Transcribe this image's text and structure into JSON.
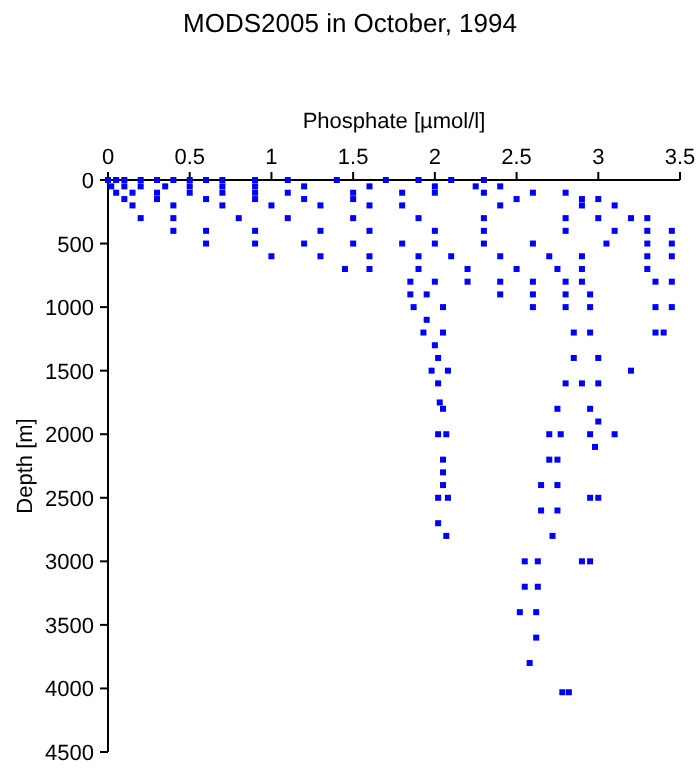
{
  "chart_data": {
    "type": "scatter",
    "title": "MODS2005 in October, 1994",
    "xlabel": "Phosphate [µmol/l]",
    "ylabel": "Depth [m]",
    "xlim": [
      0,
      3.5
    ],
    "xticks": [
      0,
      0.5,
      1,
      1.5,
      2,
      2.5,
      3,
      3.5
    ],
    "ylim": [
      4500,
      0
    ],
    "yticks": [
      0,
      500,
      1000,
      1500,
      2000,
      2500,
      3000,
      3500,
      4000,
      4500
    ],
    "marker": "square",
    "grid": false,
    "series": [
      {
        "color": "#0000ff",
        "x": [
          0,
          0.05,
          0.1,
          0.2,
          0.3,
          0.4,
          0.5,
          0.6,
          0.7,
          0.9,
          1.1,
          1.4,
          1.7,
          1.9,
          2.1,
          2.3,
          0.02,
          0.1,
          0.2,
          0.35,
          0.5,
          0.7,
          0.9,
          1.2,
          1.6,
          2.0,
          2.25,
          2.4,
          0.05,
          0.15,
          0.3,
          0.5,
          0.7,
          0.9,
          1.1,
          1.5,
          1.8,
          2.0,
          2.3,
          2.6,
          2.8,
          0.1,
          0.3,
          0.6,
          0.9,
          1.2,
          1.5,
          2.5,
          2.9,
          3.0,
          0.15,
          0.4,
          0.7,
          1.0,
          1.3,
          1.6,
          1.8,
          2.4,
          2.9,
          3.1,
          0.2,
          0.4,
          0.8,
          1.1,
          1.5,
          1.9,
          2.3,
          2.8,
          3.0,
          3.2,
          3.3,
          0.4,
          0.6,
          0.9,
          1.3,
          1.6,
          2.0,
          2.3,
          2.8,
          3.1,
          3.3,
          3.45,
          0.6,
          0.9,
          1.2,
          1.5,
          1.8,
          2.0,
          2.3,
          2.6,
          3.05,
          3.3,
          3.45,
          1.0,
          1.3,
          1.6,
          1.9,
          2.1,
          2.4,
          2.7,
          2.9,
          3.3,
          3.45,
          1.45,
          1.6,
          1.9,
          2.2,
          2.5,
          2.75,
          2.9,
          3.3,
          1.85,
          2.0,
          2.2,
          2.4,
          2.6,
          2.8,
          2.9,
          3.35,
          3.45,
          1.85,
          1.95,
          2.4,
          2.6,
          2.8,
          2.95,
          1.87,
          2.05,
          2.6,
          2.8,
          2.95,
          3.35,
          3.45,
          1.95,
          1.93,
          2.05,
          2.85,
          2.95,
          3.35,
          3.4,
          2.0,
          2.02,
          2.85,
          3.0,
          1.98,
          2.08,
          3.2,
          2.02,
          2.8,
          2.9,
          3.0,
          2.03,
          2.05,
          2.75,
          2.95,
          3.0,
          2.02,
          2.07,
          2.7,
          2.77,
          2.95,
          3.1,
          2.98,
          2.05,
          2.7,
          2.75,
          2.05,
          2.05,
          2.65,
          2.75,
          2.02,
          2.08,
          2.95,
          3.0,
          2.65,
          2.75,
          2.02,
          2.07,
          2.72,
          2.55,
          2.63,
          2.9,
          2.95,
          2.55,
          2.63,
          2.52,
          2.62,
          2.62,
          2.58,
          2.78,
          2.82
        ],
        "values": [
          0,
          0,
          0,
          0,
          0,
          0,
          0,
          0,
          0,
          0,
          0,
          0,
          0,
          0,
          0,
          0,
          50,
          50,
          50,
          50,
          50,
          50,
          50,
          50,
          50,
          50,
          50,
          50,
          100,
          100,
          100,
          100,
          100,
          100,
          100,
          100,
          100,
          100,
          100,
          100,
          100,
          150,
          150,
          150,
          150,
          150,
          150,
          150,
          150,
          150,
          200,
          200,
          200,
          200,
          200,
          200,
          200,
          200,
          200,
          200,
          300,
          300,
          300,
          300,
          300,
          300,
          300,
          300,
          300,
          300,
          300,
          400,
          400,
          400,
          400,
          400,
          400,
          400,
          400,
          400,
          400,
          400,
          500,
          500,
          500,
          500,
          500,
          500,
          500,
          500,
          500,
          500,
          500,
          600,
          600,
          600,
          600,
          600,
          600,
          600,
          600,
          600,
          600,
          700,
          700,
          700,
          700,
          700,
          700,
          700,
          700,
          800,
          800,
          800,
          800,
          800,
          800,
          800,
          800,
          800,
          900,
          900,
          900,
          900,
          900,
          900,
          1000,
          1000,
          1000,
          1000,
          1000,
          1000,
          1000,
          1100,
          1200,
          1200,
          1200,
          1200,
          1200,
          1200,
          1300,
          1400,
          1400,
          1400,
          1500,
          1500,
          1500,
          1600,
          1600,
          1600,
          1600,
          1750,
          1800,
          1800,
          1800,
          1900,
          2000,
          2000,
          2000,
          2000,
          2000,
          2000,
          2100,
          2200,
          2200,
          2200,
          2300,
          2400,
          2400,
          2400,
          2500,
          2500,
          2500,
          2500,
          2600,
          2600,
          2700,
          2800,
          2800,
          3000,
          3000,
          3000,
          3000,
          3200,
          3200,
          3400,
          3400,
          3600,
          3800,
          4030,
          4030
        ]
      }
    ]
  }
}
